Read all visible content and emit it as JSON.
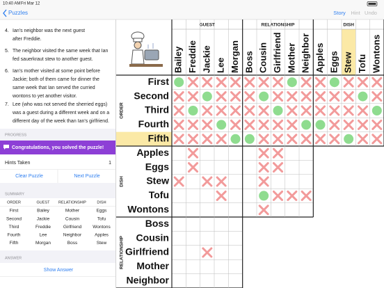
{
  "status_bar": {
    "time": "10:40 AM",
    "date": "Fri Mar 12"
  },
  "nav": {
    "back": "Puzzles",
    "actions": [
      "Story",
      "Hint",
      "Undo"
    ]
  },
  "clues": [
    {
      "number": "4.",
      "lines": [
        "Ian's neighbor was the next guest",
        "after Freddie."
      ]
    },
    {
      "number": "5.",
      "lines": [
        "The neighbor visited the same week that Ian",
        "fed sauerkraut stew to another guest."
      ]
    },
    {
      "number": "6.",
      "lines": [
        "Ian's mother visited at some point before",
        "Jackie; both of them came for dinner the",
        "same week that Ian served the curried",
        "wontons to yet another visitor."
      ]
    },
    {
      "number": "7.",
      "lines": [
        "Lee (who was not served the sherried eggs)",
        "was a guest during a different week and on a",
        "different day of the week than Ian's girlfriend."
      ]
    }
  ],
  "progress": {
    "label": "PROGRESS",
    "banner": "Congratulations, you solved the puzzle!",
    "hints_label": "Hints Taken",
    "hints_value": 1,
    "buttons": [
      "Clear Puzzle",
      "Next Puzzle"
    ]
  },
  "summary": {
    "label": "SUMMARY",
    "headers": [
      "ORDER",
      "GUEST",
      "RELATIONSHIP",
      "DISH"
    ],
    "rows": [
      [
        "First",
        "Bailey",
        "Mother",
        "Eggs"
      ],
      [
        "Second",
        "Jackie",
        "Cousin",
        "Tofu"
      ],
      [
        "Third",
        "Freddie",
        "Girlfriend",
        "Wontons"
      ],
      [
        "Fourth",
        "Lee",
        "Neighbor",
        "Apples"
      ],
      [
        "Fifth",
        "Morgan",
        "Boss",
        "Stew"
      ]
    ]
  },
  "answer": {
    "label": "ANSWER",
    "button": "Show Answer"
  },
  "grid": {
    "col_groups": [
      {
        "name": "GUEST",
        "items": [
          "Bailey",
          "Freddie",
          "Jackie",
          "Lee",
          "Morgan"
        ]
      },
      {
        "name": "RELATIONSHIP",
        "items": [
          "Boss",
          "Cousin",
          "Girlfriend",
          "Mother",
          "Neighbor"
        ]
      },
      {
        "name": "DISH",
        "items": [
          "Apples",
          "Eggs",
          "Stew",
          "Tofu",
          "Wontons"
        ]
      }
    ],
    "row_groups": [
      {
        "name": "ORDER",
        "items": [
          "First",
          "Second",
          "Third",
          "Fourth",
          "Fifth"
        ]
      },
      {
        "name": "DISH",
        "items": [
          "Apples",
          "Eggs",
          "Stew",
          "Tofu",
          "Wontons"
        ]
      },
      {
        "name": "RELATIONSHIP",
        "items": [
          "Boss",
          "Cousin",
          "Girlfriend",
          "Mother",
          "Neighbor"
        ]
      }
    ],
    "highlight_row": 4,
    "highlight_col": 12,
    "cells": [
      [
        "O",
        "X",
        "X",
        "X",
        "X",
        "X",
        "X",
        "X",
        "O",
        "X",
        "X",
        "O",
        "X",
        "X",
        "X"
      ],
      [
        "X",
        "X",
        "O",
        "X",
        "X",
        "X",
        "O",
        "X",
        "X",
        "X",
        "X",
        "X",
        "X",
        "O",
        "X"
      ],
      [
        "X",
        "O",
        "X",
        "X",
        "X",
        "X",
        "X",
        "O",
        "X",
        "X",
        "X",
        "X",
        "X",
        "X",
        "O"
      ],
      [
        "X",
        "X",
        "X",
        "O",
        "X",
        "X",
        "X",
        "X",
        "X",
        "O",
        "O",
        "X",
        "X",
        "X",
        "X"
      ],
      [
        "X",
        "X",
        "X",
        "X",
        "O",
        "O",
        "X",
        "X",
        "X",
        "X",
        "X",
        "X",
        "O",
        "X",
        "X"
      ],
      [
        null,
        "X",
        null,
        null,
        null,
        null,
        "X",
        "X",
        null,
        null
      ],
      [
        null,
        "X",
        null,
        null,
        null,
        null,
        "X",
        "X",
        null,
        null
      ],
      [
        "X",
        null,
        "X",
        "X",
        null,
        null,
        "X",
        null,
        null,
        null
      ],
      [
        null,
        null,
        null,
        "X",
        null,
        null,
        "O",
        "X",
        "X",
        "X"
      ],
      [
        null,
        null,
        null,
        null,
        null,
        null,
        "X",
        null,
        null,
        null
      ],
      [
        null,
        null,
        null,
        null,
        null
      ],
      [
        null,
        null,
        null,
        null,
        null
      ],
      [
        null,
        null,
        "X",
        null,
        null
      ],
      [
        null,
        null,
        null,
        null,
        null
      ],
      [
        null,
        null,
        null,
        null,
        null
      ]
    ]
  }
}
